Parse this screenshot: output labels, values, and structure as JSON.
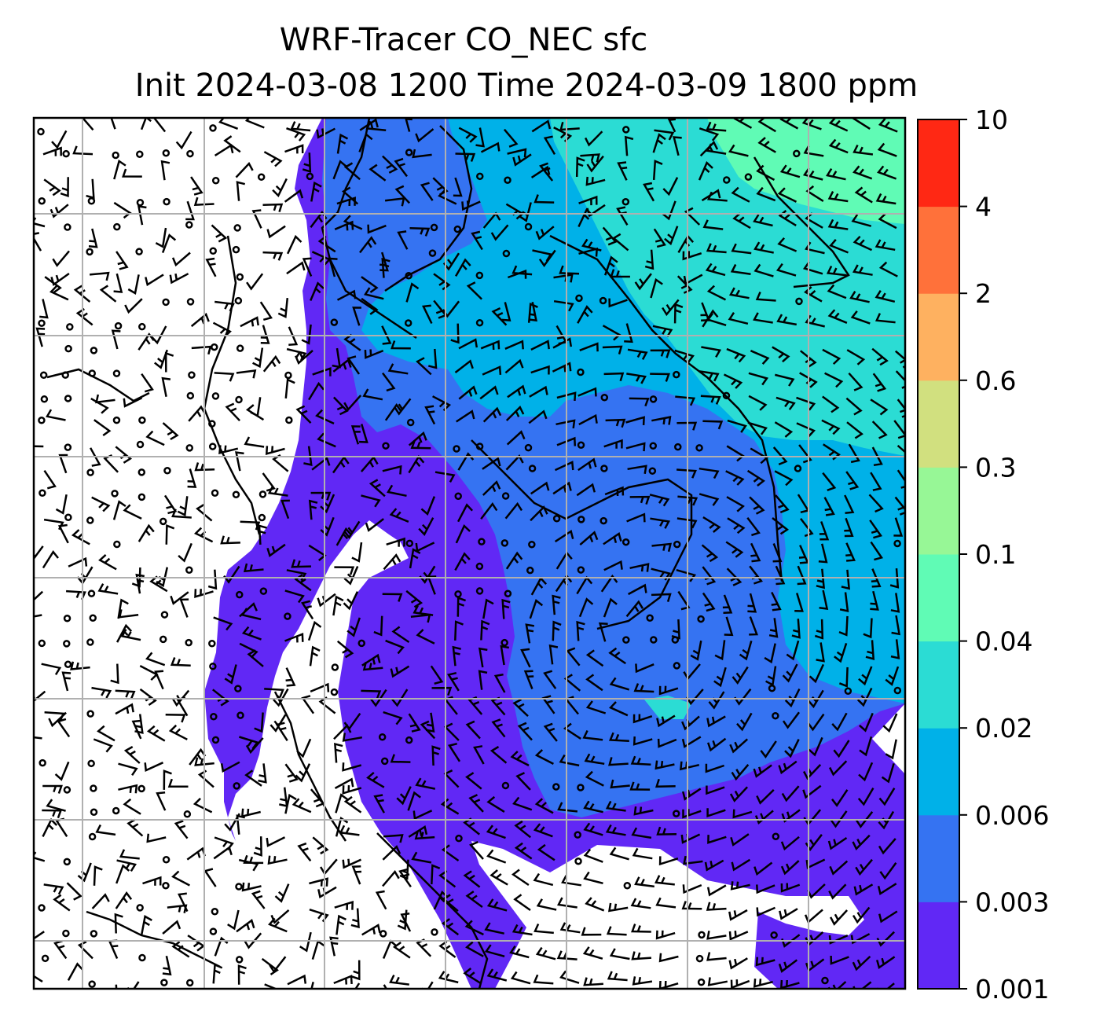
{
  "chart_data": {
    "type": "heatmap",
    "title": "WRF-Tracer CO_NEC sfc",
    "subtitle": "Init 2024-03-08 1200 Time 2024-03-09 1800 ppm",
    "grid": true,
    "legend": "colorbar-right",
    "colorbar": {
      "levels": [
        "0.001",
        "0.003",
        "0.006",
        "0.02",
        "0.04",
        "0.1",
        "0.3",
        "0.6",
        "2",
        "4",
        "10"
      ],
      "colors": [
        "#6128f5",
        "#3573f2",
        "#00b1e8",
        "#2bdcd4",
        "#60fbb5",
        "#97f796",
        "#d1e07f",
        "#feb160",
        "#ff713a",
        "#ff2814"
      ]
    }
  }
}
